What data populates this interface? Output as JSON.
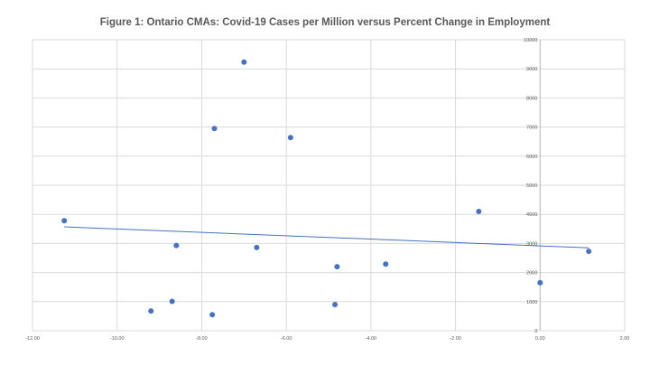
{
  "chart_data": {
    "type": "scatter",
    "title": "Figure 1: Ontario CMAs: Covid-19 Cases per Million versus Percent Change in Employment",
    "xlabel": "",
    "ylabel": "",
    "xlim": [
      -12,
      2
    ],
    "ylim": [
      0,
      10000
    ],
    "grid": true,
    "legend": "none",
    "x_ticks": [
      -12,
      -10,
      -8,
      -6,
      -4,
      -2,
      0,
      2
    ],
    "x_tick_labels": [
      "-12.00",
      "-10.00",
      "-8.00",
      "-6.00",
      "-4.00",
      "-2.00",
      "0.00",
      "2.00"
    ],
    "y_ticks": [
      0,
      1000,
      2000,
      3000,
      4000,
      5000,
      6000,
      7000,
      8000,
      9000,
      10000
    ],
    "y_tick_labels": [
      "0",
      "1000",
      "2000",
      "3000",
      "4000",
      "5000",
      "6000",
      "7000",
      "8000",
      "9000",
      "10000"
    ],
    "series": [
      {
        "name": "Ontario CMAs",
        "color": "#4472C4",
        "points": [
          {
            "x": -11.25,
            "y": 3780
          },
          {
            "x": -9.2,
            "y": 680
          },
          {
            "x": -8.7,
            "y": 1010
          },
          {
            "x": -8.6,
            "y": 2930
          },
          {
            "x": -7.7,
            "y": 6950
          },
          {
            "x": -7.75,
            "y": 550
          },
          {
            "x": -7.0,
            "y": 9230
          },
          {
            "x": -6.7,
            "y": 2860
          },
          {
            "x": -5.9,
            "y": 6640
          },
          {
            "x": -4.8,
            "y": 2200
          },
          {
            "x": -4.85,
            "y": 900
          },
          {
            "x": -3.65,
            "y": 2290
          },
          {
            "x": -1.45,
            "y": 4100
          },
          {
            "x": 0.0,
            "y": 1650
          },
          {
            "x": 1.15,
            "y": 2730
          }
        ]
      }
    ],
    "trendline": {
      "type": "linear",
      "color": "#4472C4",
      "start": {
        "x": -11.25,
        "y": 3570
      },
      "end": {
        "x": 1.15,
        "y": 2850
      }
    }
  }
}
